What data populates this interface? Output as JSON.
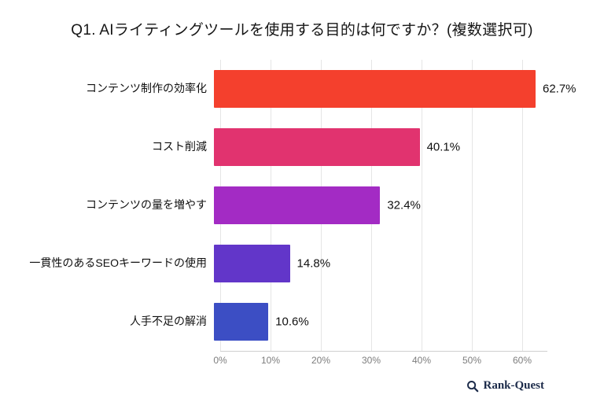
{
  "chart_data": {
    "type": "bar",
    "orientation": "horizontal",
    "title": "Q1. AIライティングツールを使用する目的は何ですか？(複数選択可)",
    "categories": [
      "コンテンツ制作の効率化",
      "コスト削減",
      "コンテンツの量を増やす",
      "一貫性のあるSEOキーワードの使用",
      "人手不足の解消"
    ],
    "values": [
      62.7,
      40.1,
      32.4,
      14.8,
      10.6
    ],
    "value_labels": [
      "62.7%",
      "40.1%",
      "32.4%",
      "14.8%",
      "10.6%"
    ],
    "bar_colors": [
      "#f4402d",
      "#e1336f",
      "#a32bc4",
      "#6236c9",
      "#3c4ec4"
    ],
    "xlabel": "",
    "ylabel": "",
    "xlim": [
      0,
      65
    ],
    "x_ticks": [
      "0%",
      "10%",
      "20%",
      "30%",
      "40%",
      "50%",
      "60%"
    ],
    "x_tick_values": [
      0,
      10,
      20,
      30,
      40,
      50,
      60
    ],
    "grid": true,
    "legend": "none",
    "background": "#ffffff"
  },
  "footer": {
    "brand": "Rank-Quest"
  }
}
